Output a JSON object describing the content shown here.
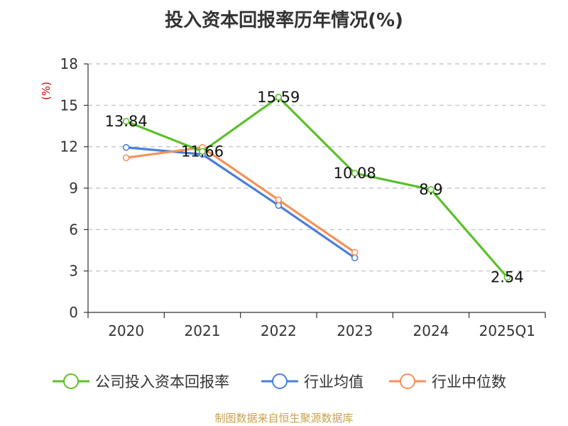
{
  "title": "投入资本回报率历年情况(%)",
  "source": "制图数据来自恒生聚源数据库",
  "chart_data": {
    "type": "line",
    "title": "投入资本回报率历年情况(%)",
    "ylabel": "(%)",
    "xlabel": "",
    "categories": [
      "2020",
      "2021",
      "2022",
      "2023",
      "2024",
      "2025Q1"
    ],
    "ylim": [
      0,
      18
    ],
    "yticks": [
      0,
      3,
      6,
      9,
      12,
      15,
      18
    ],
    "grid": true,
    "legend_position": "bottom",
    "series": [
      {
        "name": "公司投入资本回报率",
        "color": "#5cc02a",
        "values": [
          13.84,
          11.66,
          15.59,
          10.08,
          8.9,
          2.54
        ],
        "labels": [
          "13.84",
          "11.66",
          "15.59",
          "10.08",
          "8.9",
          "2.54"
        ]
      },
      {
        "name": "行业均值",
        "color": "#4a7fd8",
        "values": [
          11.95,
          11.45,
          7.75,
          3.95,
          null,
          null
        ]
      },
      {
        "name": "行业中位数",
        "color": "#f5915a",
        "values": [
          11.2,
          11.95,
          8.15,
          4.35,
          null,
          null
        ]
      }
    ]
  }
}
